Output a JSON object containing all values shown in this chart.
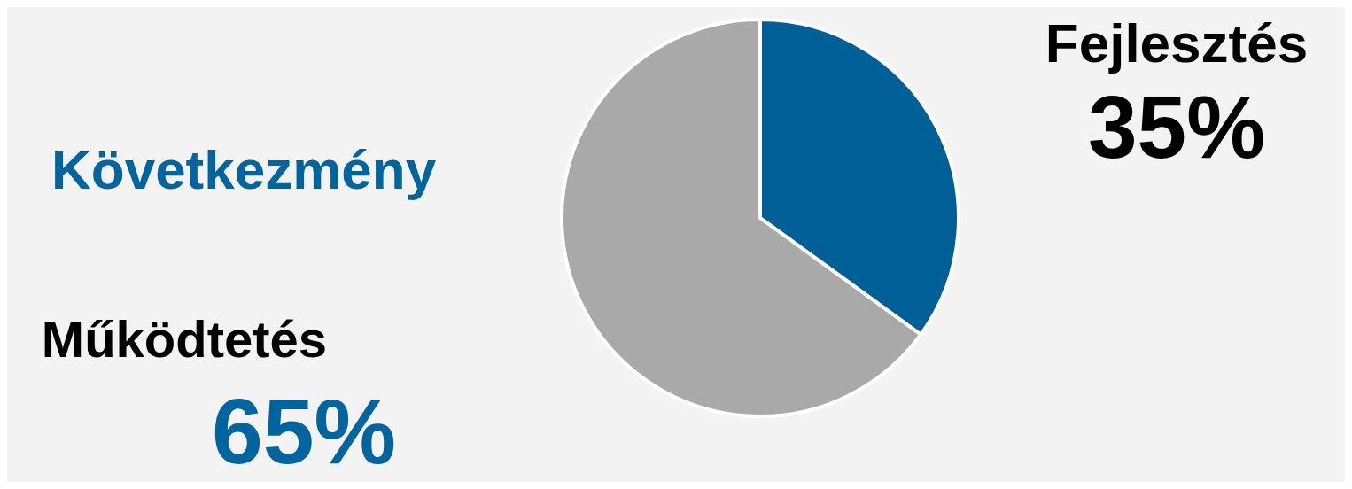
{
  "chart_data": {
    "type": "pie",
    "categories": [
      "Fejlesztés",
      "Működtetés"
    ],
    "values": [
      35,
      65
    ],
    "colors": [
      "#005f96",
      "#a9a9a9"
    ],
    "value_labels": [
      "35%",
      "65%"
    ],
    "annotations": [
      "Következmény"
    ]
  }
}
